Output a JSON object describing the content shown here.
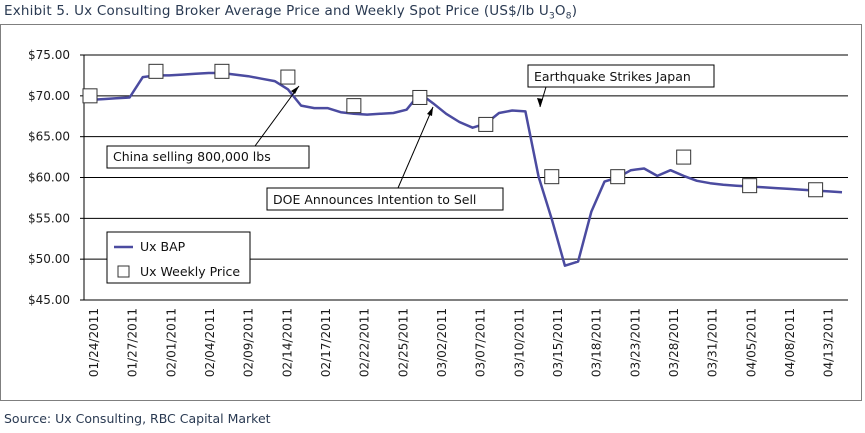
{
  "title_main": "Exhibit 5. Ux Consulting Broker Average Price and Weekly Spot Price (US$/lb U",
  "title_sub1": "3",
  "title_mid": "O",
  "title_sub2": "8",
  "title_end": ")",
  "source": "Source: Ux Consulting, RBC Capital Market",
  "colors": {
    "line": "#4b4ba0",
    "marker_fill": "#ffffff",
    "marker_stroke": "#333333",
    "grid": "#000000"
  },
  "chart_data": {
    "type": "line",
    "ylim": [
      45,
      75
    ],
    "y_ticks": [
      "$45.00",
      "$50.00",
      "$55.00",
      "$60.00",
      "$65.00",
      "$70.00",
      "$75.00"
    ],
    "x_tick_labels": [
      "01/24/2011",
      "01/27/2011",
      "02/01/2011",
      "02/04/2011",
      "02/09/2011",
      "02/14/2011",
      "02/17/2011",
      "02/22/2011",
      "02/25/2011",
      "03/02/2011",
      "03/07/2011",
      "03/10/2011",
      "03/15/2011",
      "03/18/2011",
      "03/23/2011",
      "03/28/2011",
      "03/31/2011",
      "04/05/2011",
      "04/08/2011",
      "04/13/2011"
    ],
    "grid": true,
    "legend_position": "bottom-left",
    "series": [
      {
        "name": "Ux BAP",
        "style": "line",
        "x": [
          "2011-01-24",
          "2011-01-25",
          "2011-01-26",
          "2011-01-27",
          "2011-01-28",
          "2011-01-31",
          "2011-02-01",
          "2011-02-02",
          "2011-02-03",
          "2011-02-04",
          "2011-02-07",
          "2011-02-08",
          "2011-02-09",
          "2011-02-10",
          "2011-02-11",
          "2011-02-14",
          "2011-02-15",
          "2011-02-16",
          "2011-02-17",
          "2011-02-18",
          "2011-02-21",
          "2011-02-22",
          "2011-02-23",
          "2011-02-24",
          "2011-02-25",
          "2011-02-28",
          "2011-03-01",
          "2011-03-02",
          "2011-03-03",
          "2011-03-04",
          "2011-03-07",
          "2011-03-08",
          "2011-03-09",
          "2011-03-10",
          "2011-03-11",
          "2011-03-14",
          "2011-03-15",
          "2011-03-16",
          "2011-03-17",
          "2011-03-18",
          "2011-03-21",
          "2011-03-22",
          "2011-03-23",
          "2011-03-24",
          "2011-03-25",
          "2011-03-28",
          "2011-03-29",
          "2011-03-30",
          "2011-03-31",
          "2011-04-01",
          "2011-04-04",
          "2011-04-05",
          "2011-04-06",
          "2011-04-07",
          "2011-04-08",
          "2011-04-11",
          "2011-04-12",
          "2011-04-13"
        ],
        "values": [
          69.5,
          69.6,
          69.7,
          69.8,
          72.3,
          72.5,
          72.5,
          72.6,
          72.7,
          72.8,
          72.8,
          72.6,
          72.4,
          72.1,
          71.8,
          70.8,
          68.8,
          68.5,
          68.5,
          68.0,
          67.8,
          67.7,
          67.8,
          67.9,
          68.3,
          70.3,
          69.1,
          67.8,
          66.8,
          66.1,
          66.6,
          67.9,
          68.2,
          68.1,
          60.1,
          54.9,
          49.2,
          49.7,
          55.8,
          59.5,
          60.0,
          60.9,
          61.1,
          60.2,
          60.9,
          60.2,
          59.6,
          59.3,
          59.1,
          59.0,
          58.9,
          58.8,
          58.7,
          58.6,
          58.5,
          58.4,
          58.3,
          58.2
        ]
      },
      {
        "name": "Ux Weekly Price",
        "style": "marker",
        "x": [
          "2011-01-24",
          "2011-01-31",
          "2011-02-07",
          "2011-02-14",
          "2011-02-21",
          "2011-02-28",
          "2011-03-07",
          "2011-03-14",
          "2011-03-21",
          "2011-03-28",
          "2011-04-04",
          "2011-04-11"
        ],
        "values": [
          70.0,
          73.0,
          73.0,
          72.3,
          68.8,
          69.8,
          66.5,
          60.1,
          60.1,
          62.5,
          59.0,
          58.5
        ]
      }
    ],
    "annotations": [
      {
        "text": "China selling 800,000 lbs",
        "points_to": "2011-02-14"
      },
      {
        "text": "DOE Announces Intention to Sell",
        "points_to": "2011-02-28"
      },
      {
        "text": "Earthquake Strikes Japan",
        "points_to": "2011-03-11"
      }
    ]
  }
}
